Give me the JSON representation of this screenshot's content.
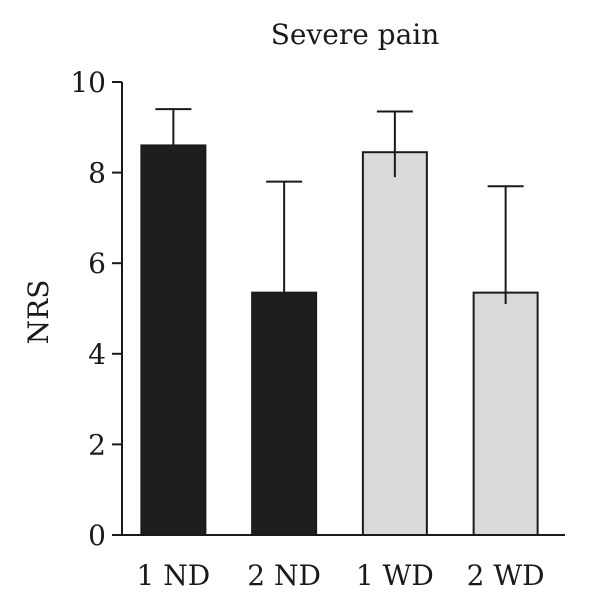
{
  "chart_data": {
    "type": "bar",
    "title": "Severe pain",
    "ylabel": "NRS",
    "xlabel": "",
    "ylim": [
      0,
      10
    ],
    "yticks": [
      0,
      2,
      4,
      6,
      8,
      10
    ],
    "yticklabels": [
      "0",
      "2",
      "4",
      "6",
      "8",
      "10"
    ],
    "categories": [
      "1 ND",
      "2 ND",
      "1 WD",
      "2 WD"
    ],
    "values": [
      8.6,
      5.35,
      8.45,
      5.35
    ],
    "error_upper": [
      9.4,
      7.8,
      9.35,
      7.7
    ],
    "error_lower": [
      8.6,
      5.35,
      7.9,
      5.1
    ],
    "bar_colors": [
      "#1e1e1e",
      "#1e1e1e",
      "#d9d9d9",
      "#d9d9d9"
    ],
    "grid": false,
    "legend": "none"
  }
}
